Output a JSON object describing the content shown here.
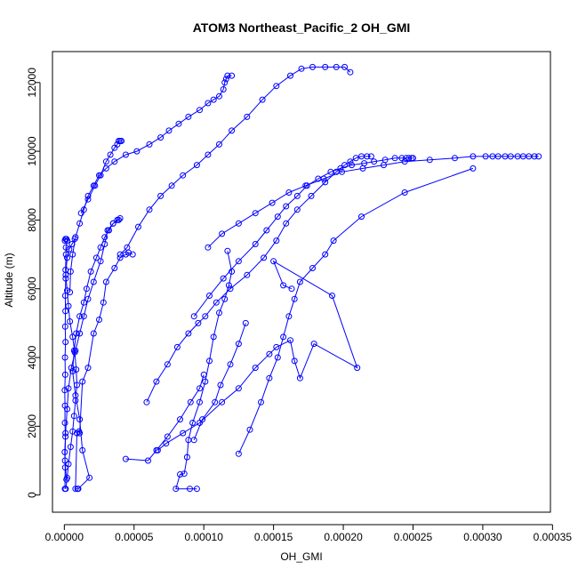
{
  "chart_data": {
    "type": "line",
    "title": "ATOM3 Northeast_Pacific_2 OH_GMI",
    "xlabel": "OH_GMI",
    "ylabel": "Altitude (m)",
    "xlim": [
      -8.5e-06,
      0.0003485
    ],
    "ylim": [
      -500,
      12900
    ],
    "x_ticks": [
      0,
      5e-05,
      0.0001,
      0.00015,
      0.0002,
      0.00025,
      0.0003,
      0.00035
    ],
    "x_tick_labels": [
      "0.00000",
      "0.00005",
      "0.00010",
      "0.00015",
      "0.00020",
      "0.00025",
      "0.00030",
      "0.00035"
    ],
    "y_ticks": [
      0,
      2000,
      4000,
      6000,
      8000,
      10000,
      12000
    ],
    "y_tick_labels": [
      "0",
      "2000",
      "4000",
      "6000",
      "8000",
      "10000",
      "12000"
    ],
    "grid": false,
    "line_style": "points-and-lines",
    "marker": "open-circle",
    "color": "#0000ff",
    "series": [
      {
        "x": [
          4e-07,
          6e-07,
          3e-07,
          8e-07,
          4e-07,
          5e-07,
          3e-07,
          7e-07,
          5e-07,
          9e-07,
          6e-07,
          8e-07,
          7e-07,
          1e-06,
          9e-07,
          1.2e-06,
          1.1e-06,
          2e-06,
          1.5e-06,
          9e-07,
          4e-07
        ],
        "y": [
          180,
          800,
          1250,
          1700,
          2100,
          2600,
          3050,
          3500,
          4000,
          4450,
          4900,
          5350,
          5800,
          6300,
          6550,
          7000,
          7200,
          7400,
          7450,
          7450,
          7400
        ]
      },
      {
        "x": [
          1e-06,
          2e-06,
          3e-06,
          4.5e-06,
          6e-06,
          7e-06,
          8e-06,
          9e-06,
          8.5e-06,
          7.5e-06,
          6e-06,
          4e-06,
          3e-06,
          2e-06,
          1e-06,
          2e-06,
          3.5e-06,
          5.5e-06,
          7.5e-06
        ],
        "y": [
          180,
          500,
          900,
          1400,
          1850,
          2300,
          2750,
          3200,
          3650,
          4150,
          4600,
          5050,
          5500,
          5950,
          6400,
          6900,
          7150,
          7300,
          7450
        ]
      },
      {
        "x": [
          1e-05,
          1.8e-05,
          1.3e-05,
          1.1e-05,
          8e-06,
          6e-06,
          7e-06,
          8.5e-06,
          1.1e-05,
          1.4e-05,
          1.6e-05,
          1.9e-05,
          2.3e-05,
          2.6e-05,
          2.9e-05,
          3.2e-05,
          3.5e-05,
          3.9e-05
        ],
        "y": [
          180,
          500,
          1300,
          2200,
          2900,
          3600,
          4200,
          4700,
          5200,
          5600,
          6000,
          6500,
          6900,
          7200,
          7500,
          7700,
          7900,
          8000
        ]
      },
      {
        "x": [
          1.5e-06,
          5e-07,
          9e-07,
          2e-06,
          3e-06,
          5e-06,
          8e-06,
          1.1e-05,
          1.4e-05,
          1.7e-05,
          2.1e-05,
          2.6e-05,
          2.9e-05,
          3.1e-05,
          3.5e-05,
          3.8e-05,
          4e-05
        ],
        "y": [
          450,
          1000,
          1800,
          2500,
          3100,
          3700,
          4200,
          4700,
          5200,
          5700,
          6200,
          6800,
          7300,
          7700,
          7900,
          8000,
          8050
        ]
      },
      {
        "x": [
          9.5e-06,
          8e-06,
          9e-06,
          1.05e-05,
          1.1e-05,
          1.3e-05,
          1.7e-05,
          2.1e-05,
          2.5e-05,
          2.8e-05,
          3e-05,
          3.6e-05,
          4e-05,
          4.4e-05,
          4.6e-05,
          4.9e-05
        ],
        "y": [
          180,
          180,
          1800,
          1850,
          1800,
          3300,
          3700,
          4700,
          5100,
          5600,
          6200,
          6600,
          6900,
          7000,
          7050,
          7000
        ]
      },
      {
        "x": [
          4.4e-05,
          6e-05,
          6.6e-05,
          7.4e-05,
          8.3e-05,
          9.05e-05,
          9.7e-05,
          0.0001
        ],
        "y": [
          1050,
          1000,
          1300,
          1700,
          2200,
          2700,
          3100,
          3500
        ]
      },
      {
        "x": [
          9.5e-05,
          9e-05,
          8e-05,
          8.3e-05,
          8.6e-05,
          8.8e-05,
          8.9e-05,
          9.2e-05,
          9.7e-05,
          0.000101,
          0.000104,
          0.000107,
          0.000111,
          0.000115,
          0.000118,
          0.00012,
          0.000117
        ],
        "y": [
          180,
          180,
          180,
          600,
          620,
          1100,
          1600,
          2100,
          2700,
          3300,
          3900,
          4600,
          5300,
          5700,
          6100,
          6500,
          7100
        ]
      },
      {
        "x": [
          9.3e-05,
          9.9e-05,
          0.000108,
          0.000112,
          0.000119,
          0.000125,
          0.00013
        ],
        "y": [
          1600,
          2200,
          2700,
          3200,
          3800,
          4400,
          5000
        ]
      },
      {
        "x": [
          1.2e-05,
          1.7e-05,
          2.2e-05,
          2.6e-05,
          3e-05,
          3.3e-05,
          3.6e-05,
          3.8e-05,
          3.9e-05,
          4e-05,
          4.1e-05
        ],
        "y": [
          8200,
          8600,
          9000,
          9300,
          9700,
          9900,
          10100,
          10200,
          10300,
          10300,
          10300
        ]
      },
      {
        "x": [
          4e-06,
          4.5e-06,
          6e-06,
          8e-06,
          1.1e-05,
          1.4e-05,
          1.7e-05,
          2.1e-05,
          2.5e-05,
          3e-05,
          3.6e-05,
          4.4e-05,
          5.2e-05,
          6.1e-05,
          6.9e-05,
          7.5e-05,
          8.2e-05,
          8.9e-05,
          9.7e-05,
          0.000103,
          0.000107,
          0.000111,
          0.000114,
          0.000115,
          0.000116,
          0.000117,
          0.00012
        ],
        "y": [
          5900,
          6500,
          7000,
          7500,
          7900,
          8300,
          8700,
          9000,
          9300,
          9500,
          9700,
          9900,
          10000,
          10200,
          10400,
          10600,
          10800,
          11000,
          11200,
          11400,
          11500,
          11600,
          11800,
          12000,
          12100,
          12200,
          12200
        ]
      },
      {
        "x": [
          4e-05,
          4.5e-05,
          5.3e-05,
          6.1e-05,
          6.9e-05,
          7.7e-05,
          8.5e-05,
          9.5e-05,
          0.000103,
          0.000111,
          0.00012,
          0.000131,
          0.000142,
          0.000152,
          0.000162,
          0.00017,
          0.000178,
          0.000187,
          0.000195,
          0.000201,
          0.000205
        ],
        "y": [
          7000,
          7200,
          7800,
          8300,
          8700,
          9000,
          9300,
          9600,
          9900,
          10200,
          10600,
          11000,
          11500,
          11900,
          12200,
          12400,
          12450,
          12450,
          12450,
          12450,
          12300
        ]
      },
      {
        "x": [
          5.9e-05,
          6.6e-05,
          7.4e-05,
          8.1e-05,
          8.9e-05,
          9.6e-05,
          0.000101,
          0.000109,
          0.000119,
          0.000131,
          0.000143,
          0.000152,
          0.000159,
          0.000167,
          0.000177,
          0.000187,
          0.000195,
          0.000201,
          0.000205,
          0.000209,
          0.000213,
          0.000217,
          0.00022
        ],
        "y": [
          2700,
          3300,
          3800,
          4300,
          4700,
          5000,
          5200,
          5600,
          6000,
          6400,
          6900,
          7400,
          7900,
          8300,
          8700,
          9100,
          9400,
          9600,
          9700,
          9800,
          9850,
          9850,
          9850
        ]
      },
      {
        "x": [
          9.3e-05,
          0.000104,
          0.000114,
          0.000125,
          0.000137,
          0.000145,
          0.000153,
          0.000159,
          0.000167,
          0.000174,
          0.000182,
          0.000191,
          0.000198,
          0.000206,
          0.000215,
          0.000222,
          0.00023,
          0.000237,
          0.000242,
          0.000245,
          0.000247,
          0.000249,
          0.00025
        ],
        "y": [
          5200,
          5800,
          6300,
          6800,
          7300,
          7700,
          8100,
          8400,
          8700,
          9000,
          9200,
          9400,
          9500,
          9600,
          9650,
          9700,
          9750,
          9800,
          9800,
          9800,
          9800,
          9800,
          9800
        ]
      },
      {
        "x": [
          0.000103,
          0.000113,
          0.000125,
          0.000137,
          0.000149,
          0.000161,
          0.000173,
          0.000186,
          0.000199,
          0.000214,
          0.000229,
          0.000244,
          0.000262,
          0.00028,
          0.000293,
          0.000302,
          0.000307,
          0.000311,
          0.000316,
          0.00032,
          0.000325,
          0.000329,
          0.000333,
          0.000337,
          0.00034
        ],
        "y": [
          7200,
          7600,
          7900,
          8200,
          8500,
          8800,
          9000,
          9200,
          9400,
          9500,
          9600,
          9700,
          9750,
          9800,
          9850,
          9850,
          9850,
          9850,
          9850,
          9850,
          9850,
          9850,
          9850,
          9850,
          9850
        ]
      },
      {
        "x": [
          0.000125,
          0.000133,
          0.000141,
          0.000147,
          0.000153,
          0.000157,
          0.000161,
          0.000165,
          0.000169,
          0.000178,
          0.000187,
          0.000193,
          0.000213,
          0.000244,
          0.000293
        ],
        "y": [
          1200,
          1900,
          2700,
          3400,
          4000,
          4600,
          5200,
          5700,
          6200,
          6600,
          7000,
          7400,
          8100,
          8800,
          9500
        ]
      },
      {
        "x": [
          6.7e-05,
          7.3e-05,
          8.5e-05,
          9.7e-05,
          0.000113,
          0.000125,
          0.000137,
          0.000147,
          0.000152,
          0.000162,
          0.000165,
          0.000169,
          0.000179,
          0.00021,
          0.000192,
          0.00015,
          0.000157,
          0.000163
        ],
        "y": [
          1300,
          1500,
          1800,
          2100,
          2700,
          3100,
          3700,
          4100,
          4300,
          4500,
          3900,
          3400,
          4400,
          3700,
          5800,
          6800,
          6100,
          6000
        ]
      }
    ]
  }
}
